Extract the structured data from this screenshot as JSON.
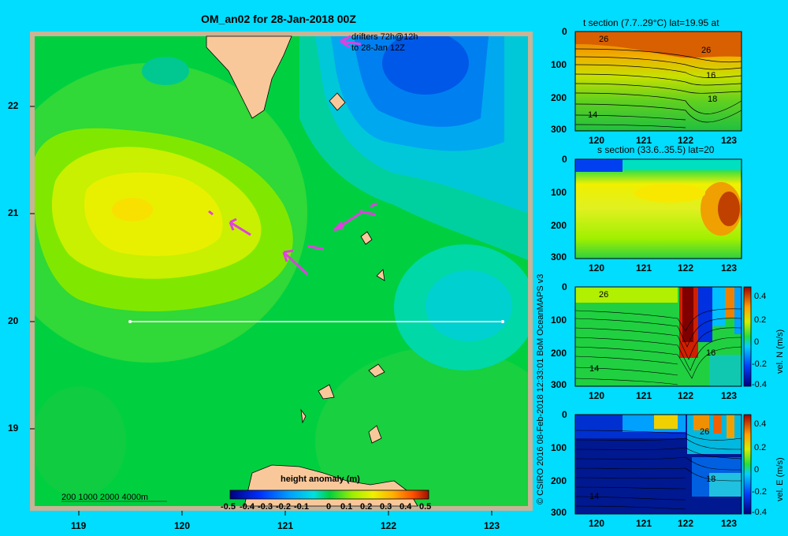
{
  "map": {
    "title": "OM_an02 for 28-Jan-2018 00Z",
    "drifters_line1": "drifters 72h@12h",
    "drifters_line2": "to 28-Jan 12Z",
    "depth_legend": "200  1000  2000  4000m",
    "lat_ticks": [
      "22",
      "21",
      "20",
      "19"
    ],
    "lon_ticks": [
      "119",
      "120",
      "121",
      "122",
      "123"
    ],
    "colorbar_title": "height anomaly  (m)",
    "colorbar_ticks": [
      "-0.5",
      "-0.4",
      "-0.3",
      "-0.2",
      "-0.1",
      "0",
      "0.1",
      "0.2",
      "0.3",
      "0.4",
      "0.5"
    ],
    "section_line": "20",
    "colors": {
      "background": "#00ddff",
      "land": "#f9c89a",
      "drifter": "#e040e0"
    }
  },
  "credit": "© CSIRO 2016   08-Feb-2018 12:33:01 BoM OceanMAPS v3",
  "panels": [
    {
      "title": "t section (7.7..29°C) lat=19.95 at",
      "y_ticks": [
        "0",
        "100",
        "200",
        "300"
      ],
      "x_ticks": [
        "120",
        "121",
        "122",
        "123"
      ],
      "labels": [
        "26",
        "26",
        "16",
        "18",
        "14"
      ]
    },
    {
      "title": "s section (33.6..35.5) lat=20",
      "y_ticks": [
        "0",
        "100",
        "200",
        "300"
      ],
      "x_ticks": [
        "120",
        "121",
        "122",
        "123"
      ],
      "labels": []
    },
    {
      "title": "",
      "y_ticks": [
        "0",
        "100",
        "200",
        "300"
      ],
      "x_ticks": [
        "120",
        "121",
        "122",
        "123"
      ],
      "labels": [
        "26",
        "16",
        "14"
      ],
      "cbar_ticks": [
        "0.4",
        "0.2",
        "0",
        "-0.2",
        "-0.4"
      ],
      "cbar_label": "vel. N  (m/s)"
    },
    {
      "title": "",
      "y_ticks": [
        "0",
        "100",
        "200",
        "300"
      ],
      "x_ticks": [
        "120",
        "121",
        "122",
        "123"
      ],
      "labels": [
        "26",
        "18",
        "14"
      ],
      "cbar_ticks": [
        "0.4",
        "0.2",
        "0",
        "-0.2",
        "-0.4"
      ],
      "cbar_label": "vel. E  (m/s)"
    }
  ]
}
